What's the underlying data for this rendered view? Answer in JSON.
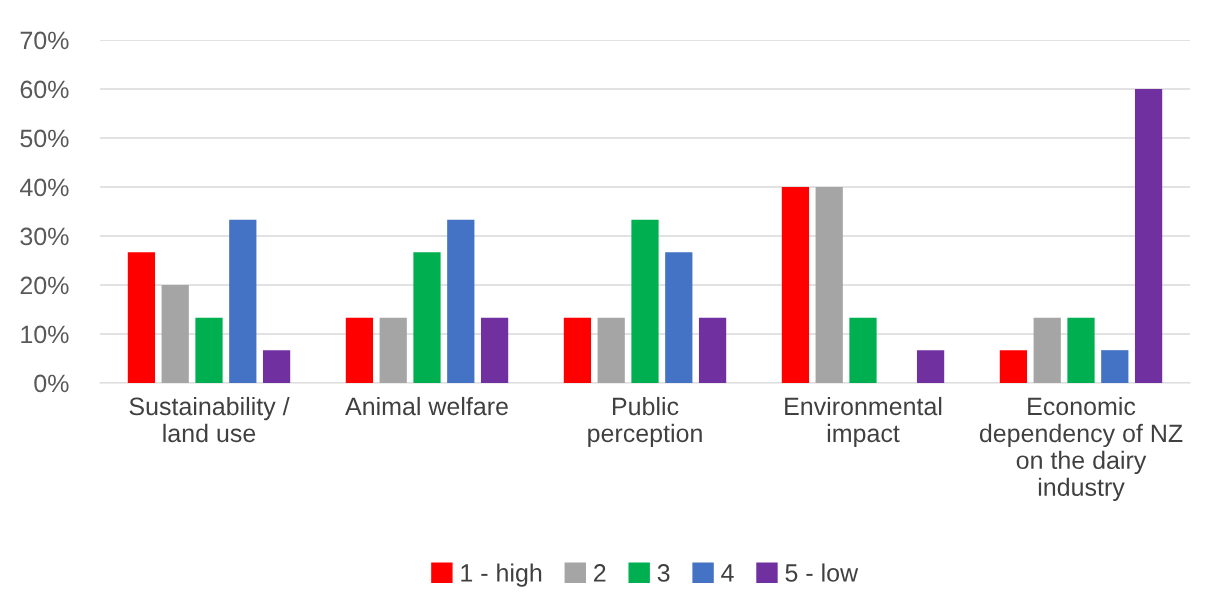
{
  "chart_data": {
    "type": "bar",
    "categories": [
      "Sustainability / land use",
      "Animal welfare",
      "Public perception",
      "Environmental impact",
      "Economic dependency of NZ on the dairy industry"
    ],
    "series": [
      {
        "name": "1 - high",
        "color": "#ff0000",
        "values": [
          26.7,
          13.3,
          13.3,
          40,
          6.7
        ]
      },
      {
        "name": "2",
        "color": "#a5a5a5",
        "values": [
          20,
          13.3,
          13.3,
          40,
          13.3
        ]
      },
      {
        "name": "3",
        "color": "#00b050",
        "values": [
          13.3,
          26.7,
          33.3,
          13.3,
          13.3
        ]
      },
      {
        "name": "4",
        "color": "#4472c4",
        "values": [
          33.3,
          33.3,
          26.7,
          0,
          6.7
        ]
      },
      {
        "name": "5 - low",
        "color": "#7030a0",
        "values": [
          6.7,
          13.3,
          13.3,
          6.7,
          60
        ]
      }
    ],
    "ylim": [
      0,
      70
    ],
    "yticks": [
      {
        "value": 0,
        "label": "0%"
      },
      {
        "value": 10,
        "label": "10%"
      },
      {
        "value": 20,
        "label": "20%"
      },
      {
        "value": 30,
        "label": "30%"
      },
      {
        "value": 40,
        "label": "40%"
      },
      {
        "value": 50,
        "label": "50%"
      },
      {
        "value": 60,
        "label": "60%"
      },
      {
        "value": 70,
        "label": "70%"
      }
    ],
    "grid": "y",
    "legend": "bottom"
  }
}
